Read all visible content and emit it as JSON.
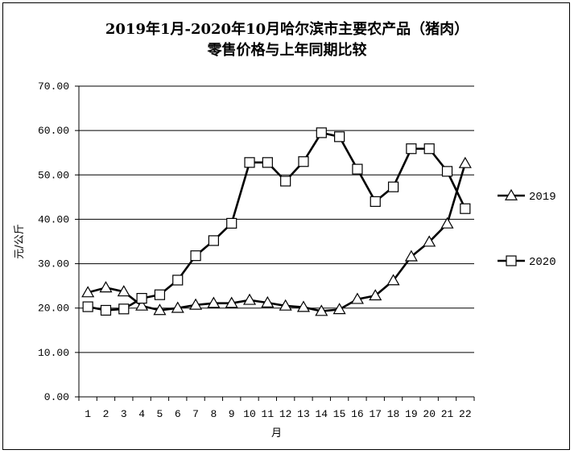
{
  "chart_data": {
    "type": "line",
    "title_line1": "2019年1月-2020年10月哈尔滨市主要农产品（猪肉）",
    "title_line2": "零售价格与上年同期比较",
    "xlabel": "月",
    "ylabel": "元/公斤",
    "ylim": [
      0,
      70
    ],
    "yticks": [
      "0.00",
      "10.00",
      "20.00",
      "30.00",
      "40.00",
      "50.00",
      "60.00",
      "70.00"
    ],
    "categories": [
      "1",
      "2",
      "3",
      "4",
      "5",
      "6",
      "7",
      "8",
      "9",
      "10",
      "11",
      "12",
      "13",
      "14",
      "15",
      "16",
      "17",
      "18",
      "19",
      "20",
      "21",
      "22"
    ],
    "grid": true,
    "legend_position": "right",
    "series": [
      {
        "name": "2019",
        "marker": "triangle",
        "values": [
          23.5,
          24.6,
          23.7,
          20.5,
          19.5,
          20.0,
          20.7,
          21.1,
          21.1,
          21.8,
          21.2,
          20.5,
          20.2,
          19.3,
          19.7,
          22.0,
          22.8,
          26.2,
          31.6,
          34.9,
          39.0,
          52.6
        ]
      },
      {
        "name": "2020",
        "marker": "square",
        "values": [
          20.3,
          19.5,
          19.8,
          22.2,
          23.0,
          26.3,
          31.8,
          35.2,
          39.1,
          52.8,
          52.8,
          48.6,
          53.0,
          59.5,
          58.6,
          51.3,
          44.0,
          47.3,
          55.9,
          55.9,
          50.8,
          42.4
        ]
      }
    ]
  }
}
